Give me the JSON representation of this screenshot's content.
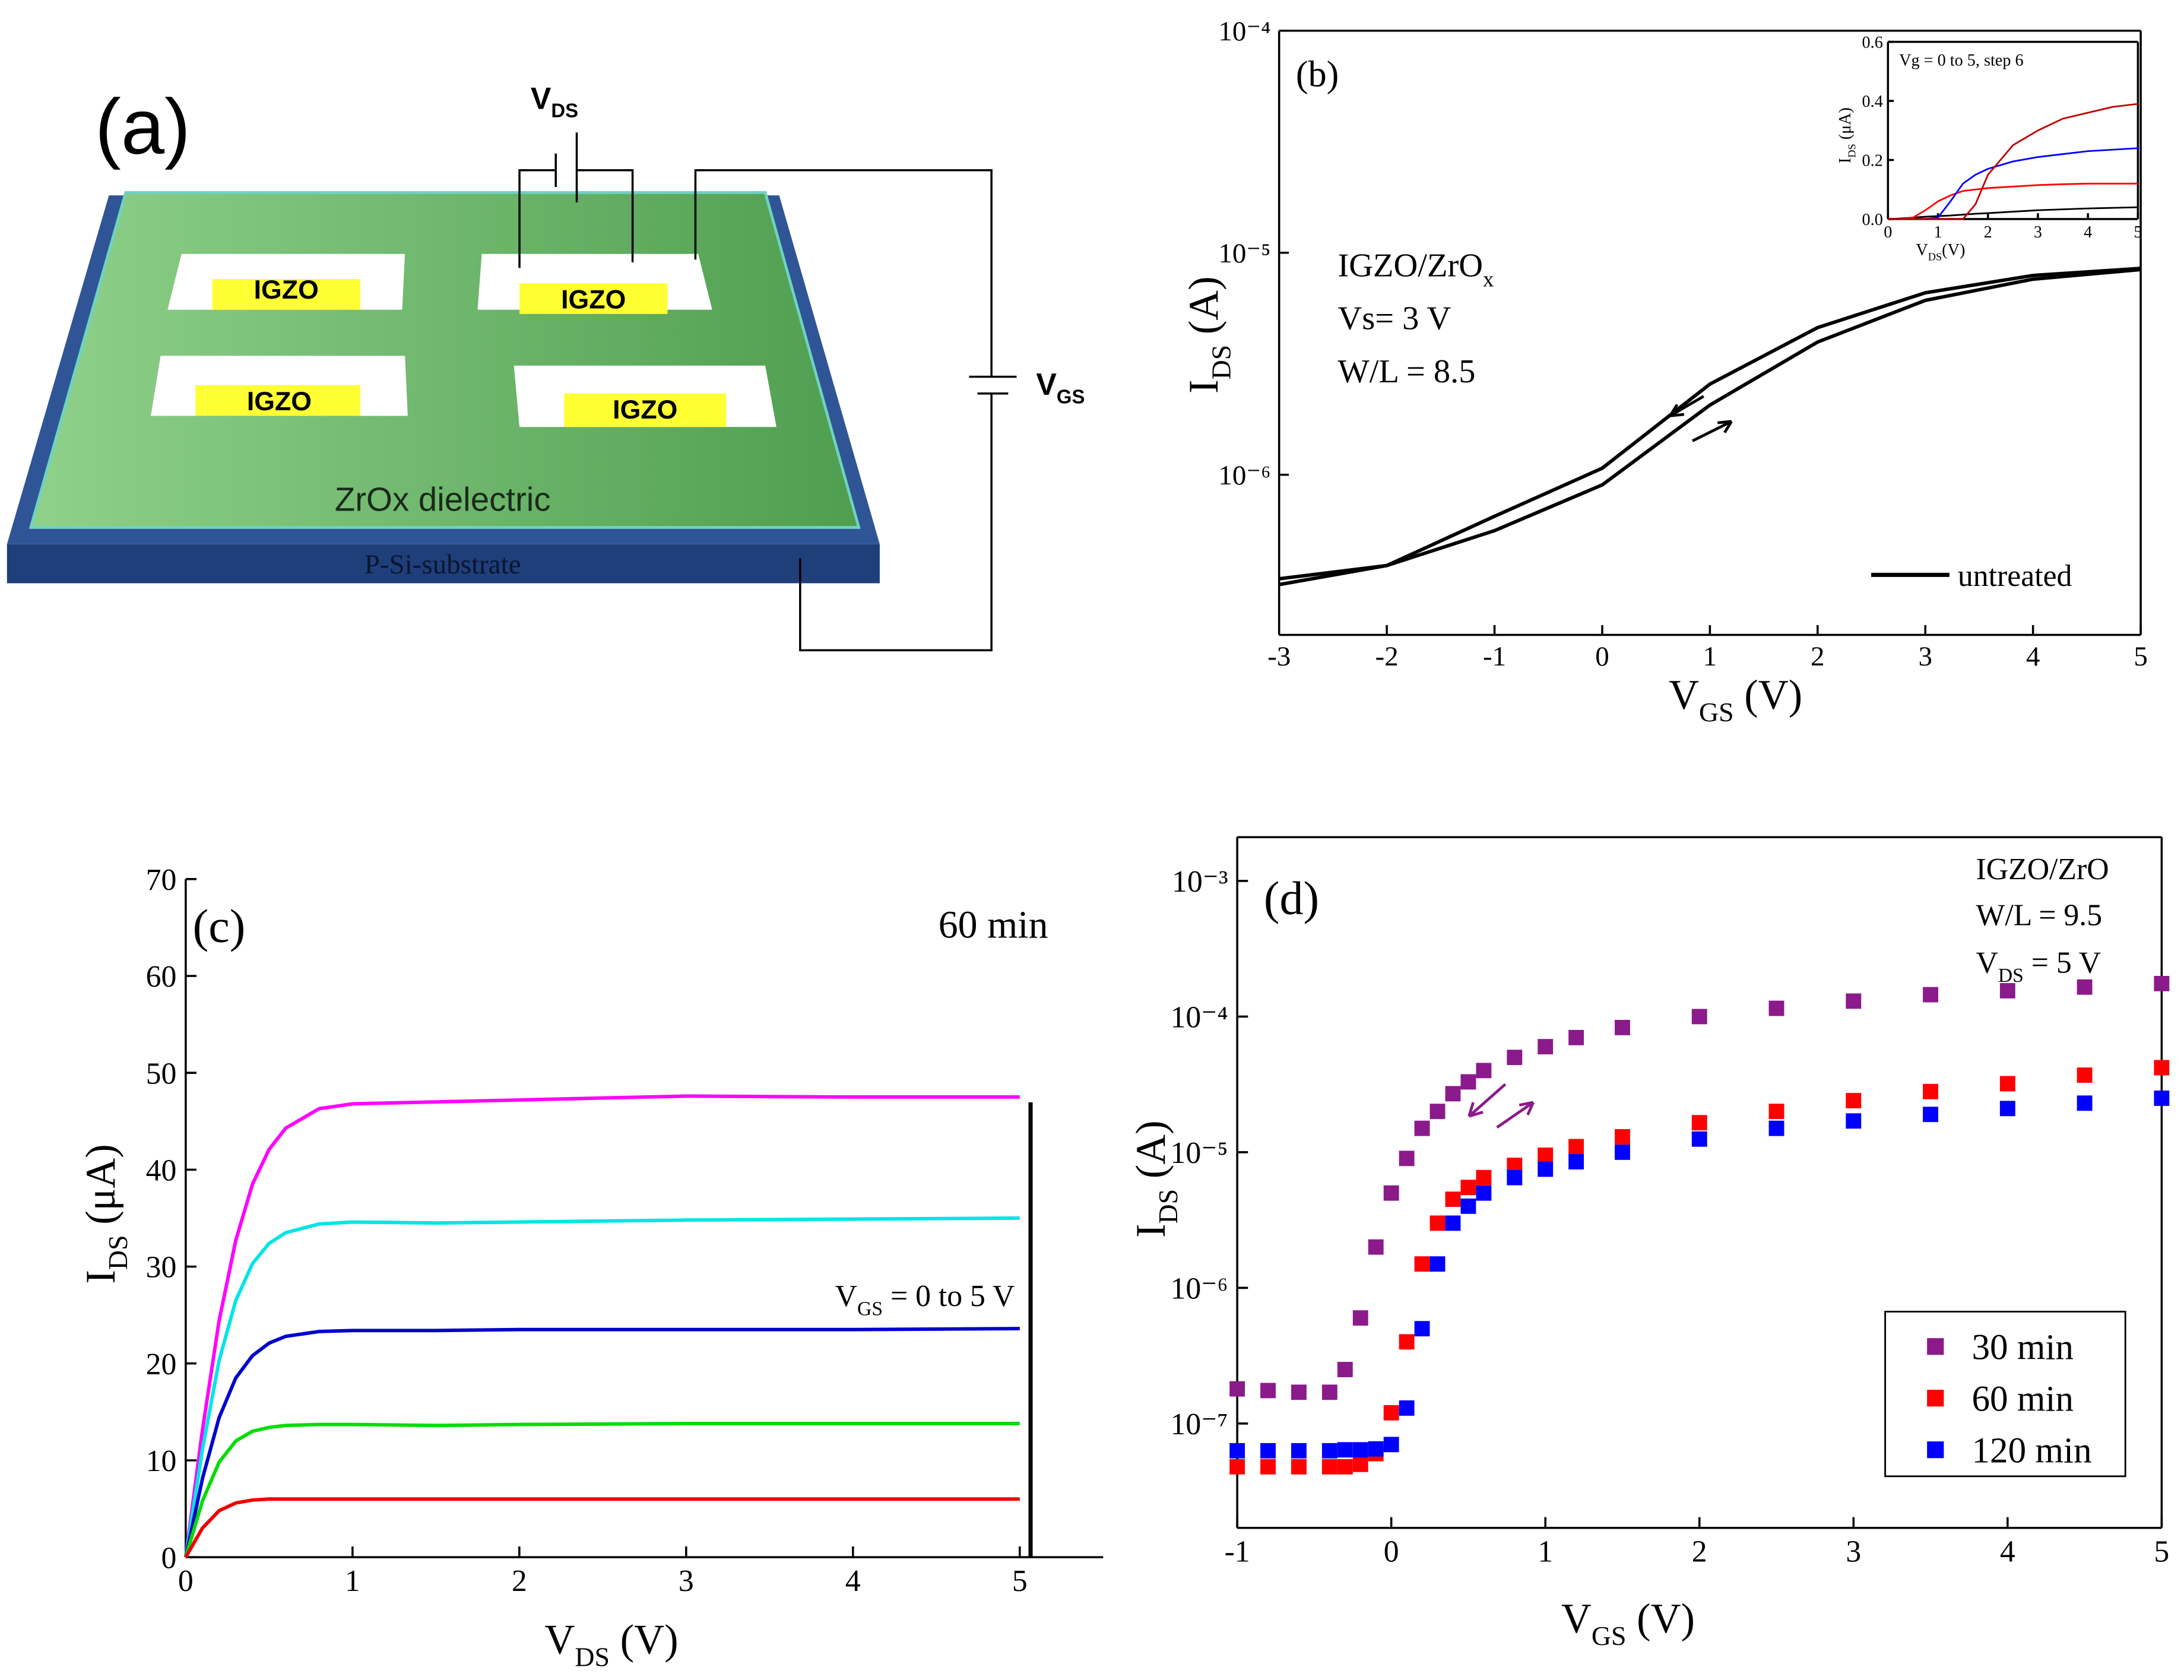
{
  "diagram": {
    "panel": "(a)",
    "pads": [
      "IGZO",
      "IGZO",
      "IGZO",
      "IGZO"
    ],
    "vds": [
      "V",
      "DS"
    ],
    "vgs": [
      "V",
      "GS"
    ],
    "dielectric": "ZrOx dielectric",
    "substrate": "P-Si-substrate"
  },
  "chart_data": [
    {
      "type": "line",
      "log_y": true,
      "annotations": [
        [
          "(b)"
        ],
        [
          "IGZO/ZrO",
          "x"
        ],
        [
          "Vs= 3 V"
        ],
        [
          "W/L = 8.5"
        ]
      ],
      "x_label": [
        "V",
        "GS",
        " (V)"
      ],
      "y_label": [
        "I",
        "DS",
        " (A)"
      ],
      "x": [
        -3,
        -2,
        -1,
        0,
        1,
        2,
        3,
        4,
        5
      ],
      "series": [
        {
          "name": "untreated",
          "color": "#000000",
          "values": [
            3.2e-07,
            3.9e-07,
            5.6e-07,
            9e-07,
            2.06e-06,
            3.96e-06,
            6.1e-06,
            7.6e-06,
            8.4e-06
          ]
        },
        {
          "color": "#000000",
          "values": [
            3.4e-07,
            3.9e-07,
            6.5e-07,
            1.07e-06,
            2.56e-06,
            4.6e-06,
            6.6e-06,
            7.9e-06,
            8.5e-06
          ]
        }
      ],
      "xlim": [
        -3,
        5
      ],
      "xticks": [
        -3,
        -2,
        -1,
        0,
        1,
        2,
        3,
        4,
        5
      ],
      "ylim": [
        1.9e-07,
        0.0001
      ],
      "yticks": [
        {
          "value": 1e-06,
          "label": "10⁻⁶"
        },
        {
          "value": 1e-05,
          "label": "10⁻⁵"
        },
        {
          "value": 0.0001,
          "label": "10⁻⁴"
        }
      ]
    },
    {
      "type": "line",
      "log_y": false,
      "title": "Vg = 0 to 5, step 6",
      "x_label": [
        "V",
        "DS",
        "(V)"
      ],
      "y_label": [
        "I",
        "DS",
        " (μA)"
      ],
      "x": [
        0,
        0.25,
        0.5,
        0.75,
        1,
        1.25,
        1.5,
        1.75,
        2,
        2.5,
        3,
        3.5,
        4,
        4.5,
        5
      ],
      "series": [
        {
          "color": "#000000",
          "values": [
            0,
            0.002,
            0.005,
            0.008,
            0.01,
            0.012,
            0.015,
            0.018,
            0.02,
            0.025,
            0.03,
            0.033,
            0.036,
            0.038,
            0.04
          ]
        },
        {
          "color": "#ff0000",
          "values": [
            0,
            0,
            0.005,
            0.03,
            0.06,
            0.08,
            0.095,
            0.1,
            0.105,
            0.11,
            0.115,
            0.118,
            0.12,
            0.12,
            0.12
          ]
        },
        {
          "color": "#0000ff",
          "values": [
            0,
            0,
            0,
            0,
            0.005,
            0.06,
            0.12,
            0.15,
            0.17,
            0.195,
            0.21,
            0.22,
            0.23,
            0.235,
            0.24
          ]
        },
        {
          "color": "#c00000",
          "values": [
            0,
            0,
            0,
            0,
            0,
            0,
            0,
            0.05,
            0.15,
            0.25,
            0.3,
            0.34,
            0.36,
            0.38,
            0.39
          ]
        }
      ],
      "xlim": [
        0,
        5
      ],
      "xticks": [
        0,
        1,
        2,
        3,
        4,
        5
      ],
      "ylim": [
        0,
        0.6
      ],
      "yticks": [
        {
          "value": 0,
          "label": "0.0"
        },
        {
          "value": 0.2,
          "label": "0.2"
        },
        {
          "value": 0.4,
          "label": "0.4"
        },
        {
          "value": 0.6,
          "label": "0.6"
        }
      ]
    },
    {
      "type": "line",
      "log_y": false,
      "annotations": [
        [
          "(c)"
        ],
        [
          "60 min"
        ],
        [
          "V",
          "GS",
          " = 0 to 5 V"
        ]
      ],
      "x_label": [
        "V",
        "DS",
        " (V)"
      ],
      "y_label": [
        "I",
        "DS",
        " (μA)"
      ],
      "x": [
        0,
        0.1,
        0.2,
        0.3,
        0.4,
        0.5,
        0.6,
        0.8,
        1,
        1.5,
        2,
        3,
        4,
        5
      ],
      "series": [
        {
          "color": "#ff00ff",
          "values": [
            0,
            13.1,
            24.4,
            32.7,
            38.5,
            42.1,
            44.3,
            46.3,
            46.8,
            47,
            47.2,
            47.6,
            47.5,
            47.5
          ]
        },
        {
          "color": "#00e5e5",
          "values": [
            0,
            11.1,
            20.3,
            26.5,
            30.3,
            32.4,
            33.5,
            34.4,
            34.6,
            34.5,
            34.6,
            34.8,
            34.9,
            35
          ]
        },
        {
          "color": "#0000cc",
          "values": [
            0,
            8.1,
            14.4,
            18.5,
            20.8,
            22.1,
            22.8,
            23.3,
            23.4,
            23.4,
            23.5,
            23.5,
            23.5,
            23.6
          ]
        },
        {
          "color": "#00dd00",
          "values": [
            0,
            5.8,
            9.8,
            12,
            13,
            13.4,
            13.6,
            13.7,
            13.7,
            13.6,
            13.7,
            13.8,
            13.8,
            13.8
          ]
        },
        {
          "color": "#ee0000",
          "values": [
            0,
            3,
            4.8,
            5.6,
            5.9,
            6,
            6,
            6,
            6,
            6,
            6,
            6,
            6,
            6
          ]
        }
      ],
      "xlim": [
        0,
        5.5
      ],
      "xticks": [
        0,
        1,
        2,
        3,
        4,
        5
      ],
      "ylim": [
        0,
        70
      ],
      "yticks": [
        0,
        10,
        20,
        30,
        40,
        50,
        60,
        70
      ]
    },
    {
      "type": "scatter",
      "log_y": true,
      "annotations": [
        [
          "(d)"
        ],
        [
          "IGZO/ZrO"
        ],
        [
          "W/L = 9.5"
        ],
        [
          "V",
          "DS",
          " = 5 V"
        ]
      ],
      "x_label": [
        "V",
        "GS",
        " (V)"
      ],
      "y_label": [
        "I",
        "DS",
        " (A)"
      ],
      "x": [
        -1,
        -0.8,
        -0.6,
        -0.4,
        -0.3,
        -0.2,
        -0.1,
        0,
        0.1,
        0.2,
        0.3,
        0.4,
        0.5,
        0.6,
        0.8,
        1,
        1.2,
        1.5,
        2,
        2.5,
        3,
        3.5,
        4,
        4.5,
        5
      ],
      "series": [
        {
          "name": "30 min",
          "color": "#8b1a8b",
          "values": [
            1.8e-07,
            1.75e-07,
            1.7e-07,
            1.7e-07,
            2.5e-07,
            6e-07,
            2e-06,
            5e-06,
            9e-06,
            1.5e-05,
            2e-05,
            2.7e-05,
            3.3e-05,
            4e-05,
            5e-05,
            6e-05,
            7e-05,
            8.3e-05,
            0.0001,
            0.000115,
            0.00013,
            0.000145,
            0.000155,
            0.000165,
            0.000175
          ]
        },
        {
          "name": "60 min",
          "color": "#ff0000",
          "values": [
            4.8e-08,
            4.8e-08,
            4.8e-08,
            4.8e-08,
            4.8e-08,
            5e-08,
            6e-08,
            1.2e-07,
            4e-07,
            1.5e-06,
            3e-06,
            4.5e-06,
            5.5e-06,
            6.5e-06,
            8e-06,
            9.5e-06,
            1.1e-05,
            1.3e-05,
            1.65e-05,
            2e-05,
            2.4e-05,
            2.8e-05,
            3.2e-05,
            3.7e-05,
            4.2e-05
          ]
        },
        {
          "name": "120 min",
          "color": "#0000ff",
          "values": [
            6.3e-08,
            6.3e-08,
            6.3e-08,
            6.3e-08,
            6.4e-08,
            6.4e-08,
            6.5e-08,
            7e-08,
            1.3e-07,
            5e-07,
            1.5e-06,
            3e-06,
            4e-06,
            5e-06,
            6.5e-06,
            7.5e-06,
            8.5e-06,
            1e-05,
            1.25e-05,
            1.5e-05,
            1.7e-05,
            1.9e-05,
            2.1e-05,
            2.3e-05,
            2.5e-05
          ]
        }
      ],
      "xlim": [
        -1,
        5
      ],
      "xticks": [
        -1,
        0,
        1,
        2,
        3,
        4,
        5
      ],
      "ylim": [
        1.7e-08,
        0.0021
      ],
      "yticks": [
        {
          "value": 1e-07,
          "label": "10⁻⁷"
        },
        {
          "value": 1e-06,
          "label": "10⁻⁶"
        },
        {
          "value": 1e-05,
          "label": "10⁻⁵"
        },
        {
          "value": 0.0001,
          "label": "10⁻⁴"
        },
        {
          "value": 0.001,
          "label": "10⁻³"
        }
      ]
    }
  ]
}
